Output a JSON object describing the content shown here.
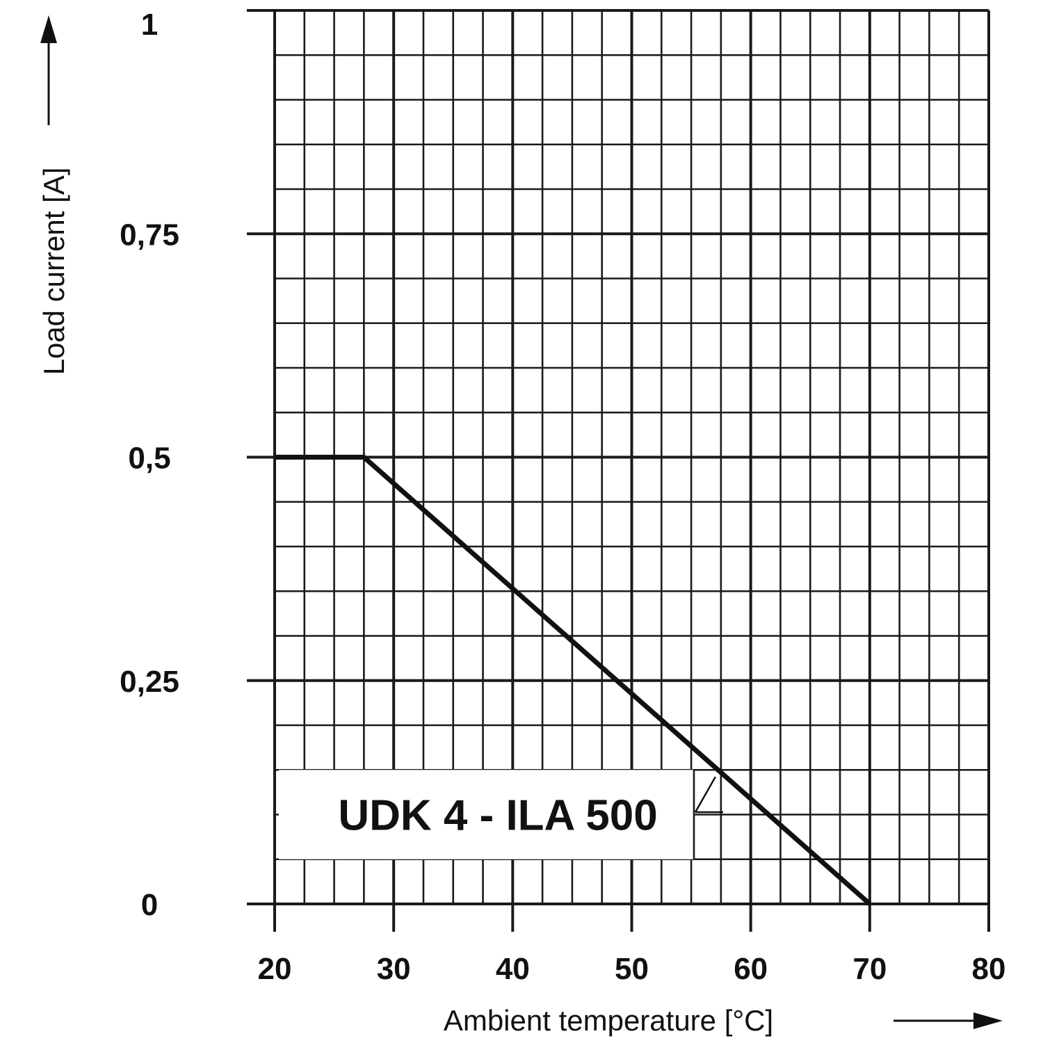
{
  "chart_data": {
    "type": "line",
    "title": "",
    "xlabel": "Ambient temperature [°C]",
    "ylabel": "Load current [A]",
    "xlim": [
      20,
      80
    ],
    "ylim": [
      0,
      1
    ],
    "x_ticks": [
      20,
      30,
      40,
      50,
      60,
      70,
      80
    ],
    "x_tick_labels": [
      "20",
      "30",
      "40",
      "50",
      "60",
      "70",
      "80"
    ],
    "y_ticks": [
      0,
      0.25,
      0.5,
      0.75,
      1
    ],
    "y_tick_labels": [
      "0",
      "0,25",
      "0,5",
      "0,75",
      "1"
    ],
    "grid": true,
    "minor_grid": {
      "x_step": 2.5,
      "y_step": 0.05
    },
    "series": [
      {
        "name": "UDK 4 - ILA 500",
        "x": [
          20,
          27.5,
          70
        ],
        "y": [
          0.5,
          0.5,
          0
        ]
      }
    ],
    "annotations": [
      {
        "text": "UDK 4 - ILA 500",
        "points_to": {
          "x": 57.5,
          "y": 0.15
        }
      }
    ]
  },
  "colors": {
    "line": "#111111",
    "grid": "#1a1a1a",
    "background": "#ffffff"
  }
}
